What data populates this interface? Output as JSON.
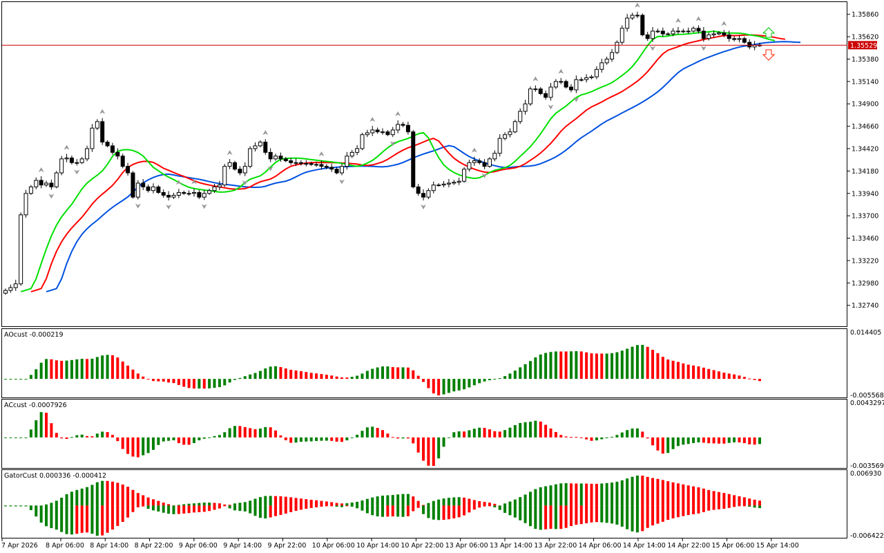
{
  "colors": {
    "bull": "#ffffff",
    "bear": "#000000",
    "jaw": "#0050e0",
    "teeth": "#ff0000",
    "lips": "#00e000",
    "ind_up": "#008000",
    "ind_down": "#ff0000",
    "price_line": "#cc0000"
  },
  "main": {
    "price_ticks": [
      "1.35860",
      "1.35620",
      "1.35380",
      "1.35140",
      "1.34900",
      "1.34660",
      "1.34420",
      "1.34180",
      "1.33940",
      "1.33700",
      "1.33460",
      "1.33220",
      "1.32980",
      "1.32740"
    ],
    "current_price": "1.35529",
    "signals": {
      "buy_icon": "arrow-up-outline-icon",
      "sell_icon": "arrow-down-outline-icon"
    },
    "closes": [
      1.329,
      1.3293,
      1.3297,
      1.3371,
      1.3394,
      1.3401,
      1.3408,
      1.3403,
      1.3405,
      1.3401,
      1.3416,
      1.3431,
      1.3432,
      1.3427,
      1.3427,
      1.3431,
      1.3442,
      1.3464,
      1.3471,
      1.3449,
      1.3445,
      1.3438,
      1.3434,
      1.3423,
      1.3416,
      1.339,
      1.3405,
      1.3401,
      1.3397,
      1.3401,
      1.3395,
      1.3392,
      1.339,
      1.3392,
      1.3395,
      1.3394,
      1.3394,
      1.3395,
      1.339,
      1.3394,
      1.3397,
      1.3401,
      1.3403,
      1.3423,
      1.3427,
      1.342,
      1.3416,
      1.3423,
      1.3442,
      1.3445,
      1.3449,
      1.3438,
      1.3431,
      1.3434,
      1.3431,
      1.3429,
      1.3427,
      1.3427,
      1.3426,
      1.3426,
      1.3425,
      1.3425,
      1.3423,
      1.3422,
      1.342,
      1.3416,
      1.3423,
      1.3434,
      1.3438,
      1.3442,
      1.3457,
      1.3459,
      1.3462,
      1.346,
      1.346,
      1.3457,
      1.3462,
      1.3468,
      1.3467,
      1.346,
      1.3401,
      1.3394,
      1.339,
      1.3397,
      1.3403,
      1.3403,
      1.3404,
      1.3405,
      1.3406,
      1.3407,
      1.342,
      1.3427,
      1.3429,
      1.3427,
      1.3423,
      1.3431,
      1.3437,
      1.3453,
      1.3457,
      1.346,
      1.3471,
      1.3482,
      1.349,
      1.3506,
      1.3506,
      1.3501,
      1.3497,
      1.3508,
      1.3514,
      1.3514,
      1.3508,
      1.3505,
      1.3516,
      1.3516,
      1.3518,
      1.3519,
      1.3527,
      1.3534,
      1.3538,
      1.3545,
      1.3556,
      1.3571,
      1.3582,
      1.3585,
      1.3585,
      1.3564,
      1.356,
      1.3568,
      1.3568,
      1.3565,
      1.3565,
      1.3568,
      1.3568,
      1.3568,
      1.3568,
      1.3571,
      1.3568,
      1.356,
      1.3564,
      1.3565,
      1.3566,
      1.3564,
      1.356,
      1.3559,
      1.356,
      1.3556,
      1.3551,
      1.3553,
      1.3553
    ]
  },
  "panes": [
    {
      "title": "AOcust -0.000219",
      "max": "0.014405",
      "min": "-0.005568"
    },
    {
      "title": "ACcust -0.0007926",
      "max": "0.0043297",
      "min": "-0.0035691"
    },
    {
      "title": "GatorCust 0.000336 -0.000412",
      "max": "0.006930",
      "min": "-0.006422"
    }
  ],
  "time_axis": [
    "7 Apr 2026",
    "8 Apr 06:00",
    "8 Apr 14:00",
    "8 Apr 22:00",
    "9 Apr 06:00",
    "9 Apr 14:00",
    "9 Apr 22:00",
    "10 Apr 06:00",
    "10 Apr 14:00",
    "10 Apr 22:00",
    "13 Apr 06:00",
    "13 Apr 14:00",
    "13 Apr 22:00",
    "14 Apr 06:00",
    "14 Apr 14:00",
    "14 Apr 22:00",
    "15 Apr 06:00",
    "15 Apr 14:00"
  ]
}
